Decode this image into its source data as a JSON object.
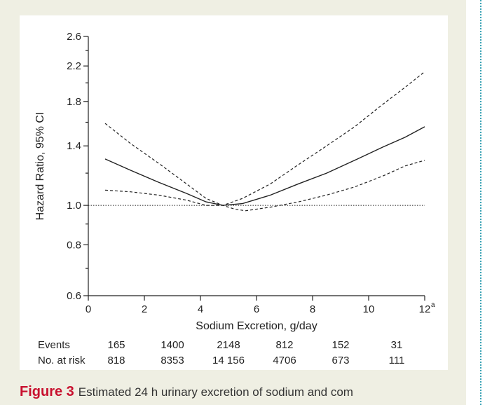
{
  "chart_data": {
    "type": "line",
    "xlabel": "Sodium Excretion, g/day",
    "ylabel": "Hazard Ratio, 95% CI",
    "xlim": [
      0,
      12
    ],
    "ylim": [
      0.6,
      2.6
    ],
    "y_scale": "log",
    "x_ticks": [
      "0",
      "2",
      "4",
      "6",
      "8",
      "10",
      "12"
    ],
    "x_last_tick_superscript": "a",
    "y_ticks": [
      {
        "value": 0.6,
        "label": "0.6"
      },
      {
        "value": 0.8,
        "label": "0.8"
      },
      {
        "value": 1.0,
        "label": "1.0"
      },
      {
        "value": 1.4,
        "label": "1.4"
      },
      {
        "value": 1.8,
        "label": "1.8"
      },
      {
        "value": 2.2,
        "label": "2.2"
      },
      {
        "value": 2.6,
        "label": "2.6"
      }
    ],
    "y_minor_ticks": [
      0.7,
      0.9,
      1.2,
      1.6,
      2.0,
      2.4
    ],
    "reference_line": 1.0,
    "series": [
      {
        "style": "solid",
        "x": [
          0.6,
          1.5,
          2.5,
          3.5,
          4.2,
          4.8,
          5.5,
          6.5,
          7.5,
          8.5,
          9.5,
          10.5,
          11.3,
          12
        ],
        "y": [
          1.3,
          1.22,
          1.14,
          1.07,
          1.02,
          1.0,
          1.01,
          1.06,
          1.13,
          1.2,
          1.29,
          1.39,
          1.47,
          1.56
        ]
      },
      {
        "style": "dashed",
        "x": [
          0.6,
          1.5,
          2.5,
          3.5,
          4.2,
          4.8,
          5.5,
          6.5,
          7.5,
          8.5,
          9.5,
          10.5,
          11.3,
          12
        ],
        "y": [
          1.59,
          1.42,
          1.27,
          1.13,
          1.04,
          1.0,
          1.04,
          1.13,
          1.26,
          1.4,
          1.56,
          1.77,
          1.95,
          2.13
        ]
      },
      {
        "style": "dashed",
        "x": [
          0.6,
          1.5,
          2.5,
          3.5,
          4.2,
          4.8,
          5.2,
          5.6,
          6.5,
          7.5,
          8.5,
          9.5,
          10.5,
          11.3,
          12
        ],
        "y": [
          1.09,
          1.08,
          1.06,
          1.03,
          1.0,
          1.0,
          0.98,
          0.97,
          0.99,
          1.02,
          1.06,
          1.11,
          1.18,
          1.25,
          1.29
        ]
      }
    ],
    "risk_table": {
      "rows": [
        {
          "label": "Events",
          "values": [
            "165",
            "1400",
            "2148",
            "812",
            "152",
            "31"
          ]
        },
        {
          "label": "No. at risk",
          "values": [
            "818",
            "8353",
            "14 156",
            "4706",
            "673",
            "111"
          ]
        }
      ],
      "x_positions": [
        1,
        3,
        5,
        7,
        9,
        11
      ]
    }
  },
  "caption": {
    "label": "Figure 3",
    "text": "Estimated 24 h urinary excretion of sodium and com"
  }
}
